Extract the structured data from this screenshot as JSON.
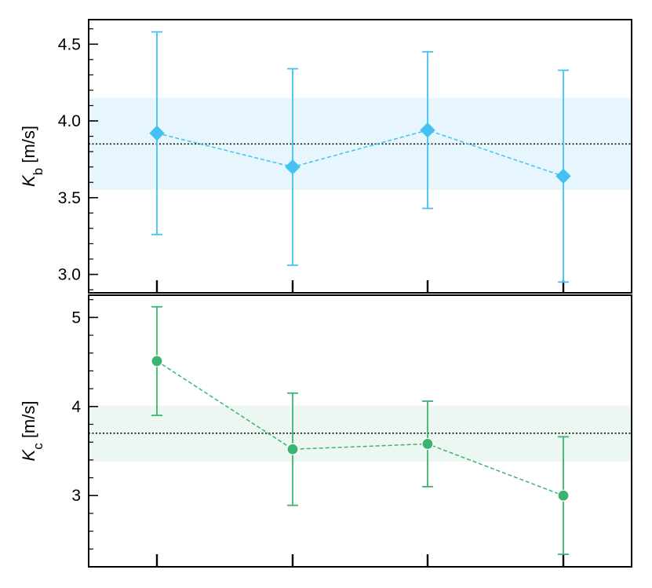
{
  "chart_data": [
    {
      "type": "line",
      "x": [
        1,
        2,
        3,
        4
      ],
      "ylim": [
        2.88,
        4.66
      ],
      "yticks": [
        3.0,
        3.5,
        4.0,
        4.5
      ],
      "ytick_labels": [
        "3.0",
        "3.5",
        "4.0",
        "4.5"
      ],
      "ylabel": {
        "symbol": "K",
        "sub": "b",
        "unit": " [m/s]"
      },
      "marker": "diamond",
      "color": "#44c1f3",
      "band_color": "#e3f4fd",
      "series": [
        {
          "values": [
            3.92,
            3.7,
            3.94,
            3.64
          ],
          "errors": [
            0.66,
            0.64,
            0.51,
            0.69
          ]
        }
      ],
      "reference_line": 3.85,
      "band": [
        3.55,
        4.15
      ],
      "grid": false
    },
    {
      "type": "line",
      "x": [
        1,
        2,
        3,
        4
      ],
      "ylim": [
        2.2,
        5.25
      ],
      "yticks": [
        3,
        4,
        5
      ],
      "ytick_labels": [
        "3",
        "4",
        "5"
      ],
      "ylabel": {
        "symbol": "K",
        "sub": "c",
        "unit": " [m/s]"
      },
      "marker": "circle",
      "color": "#3cb371",
      "band_color": "#eaf6ee",
      "series": [
        {
          "values": [
            4.51,
            3.52,
            3.58,
            3.0
          ],
          "errors": [
            0.61,
            0.63,
            0.48,
            0.66
          ]
        }
      ],
      "reference_line": 3.7,
      "band": [
        3.38,
        4.01
      ],
      "grid": false
    }
  ]
}
